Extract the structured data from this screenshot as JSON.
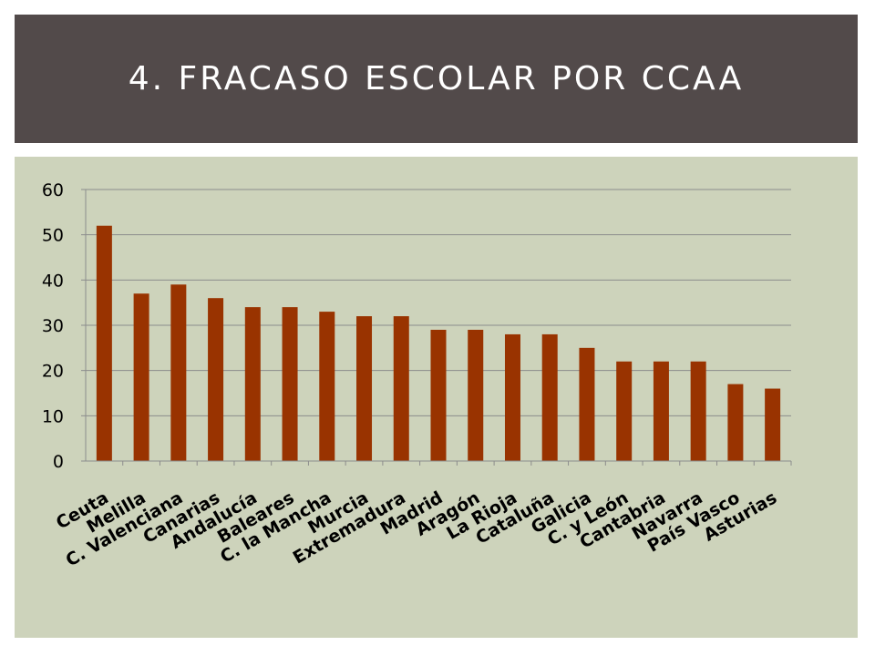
{
  "slide": {
    "title": "4. Fracaso escolar por CCAA"
  },
  "colors": {
    "title_band": "#524A4A",
    "chart_background": "#CDD3BB",
    "bar": "#993300",
    "gridline": "#8C8C8C"
  },
  "chart_data": {
    "type": "bar",
    "title": "",
    "xlabel": "",
    "ylabel": "",
    "ylim": [
      0,
      60
    ],
    "yticks": [
      0,
      10,
      20,
      30,
      40,
      50,
      60
    ],
    "grid": true,
    "categories": [
      "Ceuta",
      "Melilla",
      "C. Valenciana",
      "Canarias",
      "Andalucía",
      "Baleares",
      "C. la Mancha",
      "Murcia",
      "Extremadura",
      "Madrid",
      "Aragón",
      "La Rioja",
      "Cataluña",
      "Galicia",
      "C. y León",
      "Cantabria",
      "Navarra",
      "País Vasco",
      "Asturias"
    ],
    "values": [
      52,
      37,
      39,
      36,
      34,
      34,
      33,
      32,
      32,
      29,
      29,
      28,
      28,
      25,
      22,
      22,
      22,
      17,
      16
    ]
  }
}
